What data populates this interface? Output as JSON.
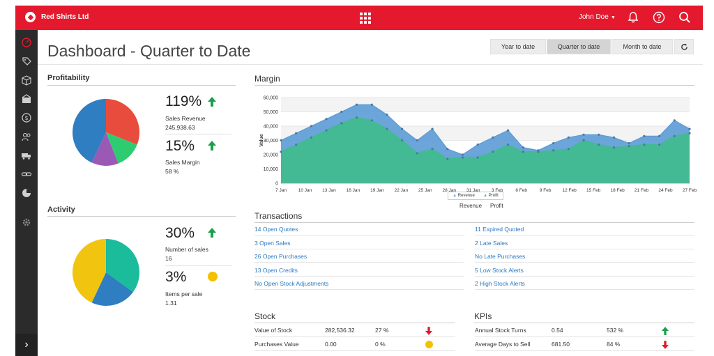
{
  "topbar": {
    "brand": "Red Shirts Ltd",
    "user": "John Doe"
  },
  "page": {
    "title": "Dashboard - Quarter to Date"
  },
  "range_buttons": [
    "Year to date",
    "Quarter to date",
    "Month to date"
  ],
  "profitability": {
    "title": "Profitability",
    "metric1": {
      "value": "119%",
      "label": "Sales Revenue",
      "sub": "245,938.63"
    },
    "metric2": {
      "value": "15%",
      "label": "Sales Margin",
      "sub": "58 %"
    }
  },
  "activity": {
    "title": "Activity",
    "metric1": {
      "value": "30%",
      "label": "Number of sales",
      "sub": "16"
    },
    "metric2": {
      "value": "3%",
      "label": "Items per sale",
      "sub": "1.31"
    }
  },
  "margin": {
    "title": "Margin",
    "legend_revenue": "Revenue",
    "legend_profit": "Profit",
    "caption_revenue": "Revenue",
    "caption_profit": "Profit"
  },
  "chart_data": {
    "type": "area",
    "ylabel": "Value",
    "ylim": [
      0,
      60000
    ],
    "yticks": [
      "0",
      "10,000",
      "20,000",
      "30,000",
      "40,000",
      "50,000",
      "60,000"
    ],
    "categories": [
      "7 Jan",
      "10 Jan",
      "13 Jan",
      "16 Jan",
      "19 Jan",
      "22 Jan",
      "25 Jan",
      "28 Jan",
      "31 Jan",
      "3 Feb",
      "6 Feb",
      "9 Feb",
      "12 Feb",
      "15 Feb",
      "18 Feb",
      "21 Feb",
      "24 Feb",
      "27 Feb"
    ],
    "x": [
      0,
      3,
      6,
      9,
      12,
      15,
      18,
      21,
      24,
      27,
      30,
      33,
      36,
      39,
      42,
      45,
      48,
      51,
      54,
      57,
      60,
      63,
      66,
      69,
      72,
      75,
      78,
      81
    ],
    "series": [
      {
        "name": "Revenue",
        "color": "#5b9bd5",
        "values": [
          30000,
          35000,
          40000,
          45000,
          50000,
          55000,
          55000,
          48000,
          38000,
          30000,
          38000,
          24000,
          20000,
          27000,
          32000,
          37000,
          25000,
          23000,
          28000,
          32000,
          34000,
          34000,
          32000,
          28000,
          33000,
          33000,
          44000,
          38000
        ]
      },
      {
        "name": "Profit",
        "color": "#3fbd8c",
        "values": [
          22000,
          27000,
          32000,
          37000,
          42000,
          46000,
          44000,
          38000,
          30000,
          21000,
          24000,
          17000,
          18000,
          18000,
          22000,
          27000,
          22000,
          22000,
          23000,
          24000,
          30000,
          27000,
          25000,
          26000,
          27000,
          27000,
          33000,
          35000
        ]
      }
    ],
    "grid": true
  },
  "transactions": {
    "title": "Transactions",
    "left": [
      "14 Open Quotes",
      "3 Open Sales",
      "26 Open Purchases",
      "13 Open Credits",
      "No Open Stock Adjustments"
    ],
    "right": [
      "11 Expired Quoted",
      "2 Late Sales",
      "No Late Purchases",
      "5 Low Stock Alerts",
      "2 High Stock Alerts"
    ]
  },
  "stock": {
    "title": "Stock",
    "rows": [
      {
        "label": "Value of Stock",
        "value": "282,536.32",
        "pct": "27 %",
        "indicator": "down"
      },
      {
        "label": "Purchases Value",
        "value": "0.00",
        "pct": "0 %",
        "indicator": "dot"
      }
    ]
  },
  "kpis": {
    "title": "KPIs",
    "rows": [
      {
        "label": "Annual Stock Turns",
        "value": "0.54",
        "pct": "532 %",
        "indicator": "up"
      },
      {
        "label": "Average Days to Sell",
        "value": "681.50",
        "pct": "84 %",
        "indicator": "down"
      }
    ]
  },
  "pies": {
    "profitability": [
      {
        "color": "#e74c3c",
        "value": 31
      },
      {
        "color": "#2ecc71",
        "value": 13
      },
      {
        "color": "#9b59b6",
        "value": 13
      },
      {
        "color": "#2e7ec1",
        "value": 43
      }
    ],
    "activity": [
      {
        "color": "#1abc9c",
        "value": 35
      },
      {
        "color": "#2e7ec1",
        "value": 22
      },
      {
        "color": "#f1c40f",
        "value": 43
      }
    ]
  }
}
